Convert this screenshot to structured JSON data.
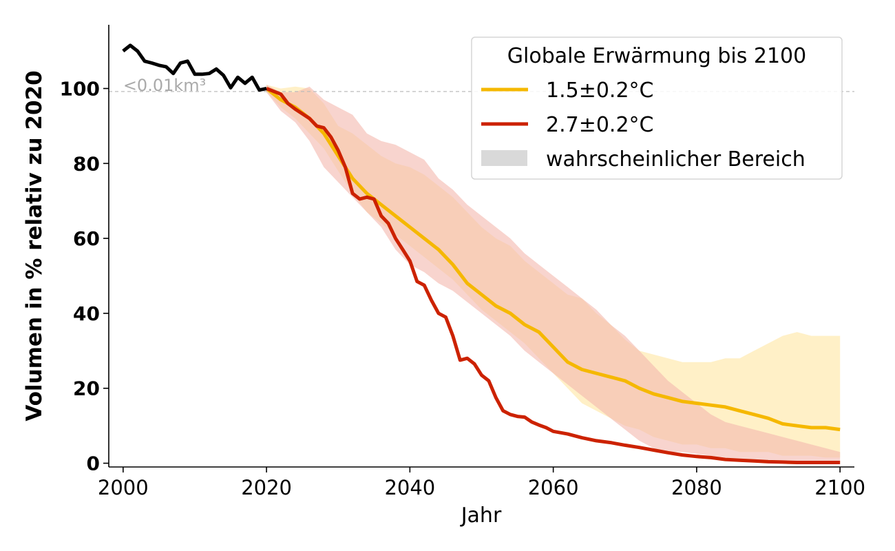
{
  "chart_data": {
    "type": "line",
    "xlabel": "Jahr",
    "ylabel": "Volumen in % relativ zu 2020",
    "xlim": [
      1998,
      2102
    ],
    "ylim": [
      -1,
      117
    ],
    "x_ticks": [
      2000,
      2020,
      2040,
      2060,
      2080,
      2100
    ],
    "y_ticks": [
      0,
      20,
      40,
      60,
      80,
      100
    ],
    "grid": false,
    "annotation": {
      "text": "<0.01km³",
      "reference_value": 99.2
    },
    "legend": {
      "title": "Globale Erwärmung bis 2100",
      "position": "top-right",
      "entries": [
        "1.5±0.2°C",
        "2.7±0.2°C",
        "wahrscheinlicher Bereich"
      ]
    },
    "colors": {
      "history": "#000000",
      "low": "#f5b800",
      "high": "#cc2200",
      "low_band": "#ffefc4",
      "high_band": "#f3b8ae",
      "range_patch": "#d9d9d9",
      "reference_line": "#bbbbbb"
    },
    "series": [
      {
        "key": "history",
        "x": [
          2000,
          2001,
          2002,
          2003,
          2004,
          2005,
          2006,
          2007,
          2008,
          2009,
          2010,
          2011,
          2012,
          2013,
          2014,
          2015,
          2016,
          2017,
          2018,
          2019,
          2020
        ],
        "values": [
          110,
          111.5,
          110,
          107.3,
          106.8,
          106.2,
          105.8,
          104,
          106.8,
          107.3,
          103.8,
          103.8,
          104,
          105.2,
          103.5,
          100.2,
          103,
          101.4,
          103,
          99.6,
          100
        ]
      },
      {
        "key": "low",
        "name": "1.5±0.2°C",
        "x": [
          2020,
          2022,
          2024,
          2026,
          2028,
          2030,
          2032,
          2034,
          2036,
          2038,
          2040,
          2042,
          2044,
          2046,
          2048,
          2050,
          2052,
          2054,
          2056,
          2058,
          2060,
          2062,
          2064,
          2066,
          2068,
          2070,
          2072,
          2074,
          2076,
          2078,
          2080,
          2082,
          2084,
          2086,
          2088,
          2090,
          2092,
          2094,
          2096,
          2098,
          2100
        ],
        "values": [
          100,
          97,
          95,
          92,
          88,
          82,
          76,
          72,
          69,
          66,
          63,
          60,
          57,
          53,
          48,
          45,
          42,
          40,
          37,
          35,
          31,
          27,
          25,
          24,
          23,
          22,
          20,
          18.5,
          17.5,
          16.5,
          16,
          15.5,
          15,
          14,
          13,
          12,
          10.5,
          10,
          9.5,
          9.5,
          9
        ],
        "range_lo": [
          99,
          95,
          92,
          88,
          84,
          78,
          72,
          67,
          64,
          61,
          58,
          55,
          52,
          49,
          45,
          41,
          38,
          35,
          32,
          28,
          24,
          20,
          16,
          14,
          12,
          10,
          9,
          7,
          6,
          5,
          5,
          4,
          4,
          3,
          3,
          3,
          2,
          2,
          2,
          1.5,
          1.5
        ],
        "range_hi": [
          101,
          100,
          100.5,
          100,
          96,
          90,
          88,
          85,
          82,
          80,
          79,
          77,
          74,
          71,
          67,
          63,
          60,
          58,
          54,
          51,
          48,
          45,
          44,
          40,
          37,
          33,
          30,
          29,
          28,
          27,
          27,
          27,
          28,
          28,
          30,
          32,
          34,
          35,
          34,
          34,
          34
        ]
      },
      {
        "key": "high",
        "name": "2.7±0.2°C",
        "x": [
          2020,
          2022,
          2023,
          2024,
          2026,
          2027,
          2028,
          2029,
          2030,
          2031,
          2032,
          2033,
          2034,
          2035,
          2036,
          2037,
          2038,
          2039,
          2040,
          2041,
          2042,
          2043,
          2044,
          2045,
          2046,
          2047,
          2048,
          2049,
          2050,
          2051,
          2052,
          2053,
          2054,
          2055,
          2056,
          2057,
          2058,
          2059,
          2060,
          2062,
          2064,
          2066,
          2068,
          2070,
          2072,
          2074,
          2076,
          2078,
          2080,
          2082,
          2084,
          2086,
          2088,
          2090,
          2092,
          2094,
          2096,
          2098,
          2100
        ],
        "values": [
          100,
          98.5,
          96,
          94.5,
          92,
          90,
          89.5,
          87,
          83.5,
          79,
          72,
          70.5,
          71,
          70.5,
          66,
          64,
          60,
          57,
          54,
          48.5,
          47.5,
          43.5,
          40,
          39,
          34,
          27.5,
          28,
          26.5,
          23.5,
          22,
          17.5,
          14,
          13,
          12.5,
          12.3,
          11,
          10.2,
          9.5,
          8.5,
          7.8,
          6.8,
          6,
          5.5,
          4.8,
          4.2,
          3.5,
          2.8,
          2.2,
          1.8,
          1.5,
          1,
          0.8,
          0.6,
          0.4,
          0.3,
          0.2,
          0.2,
          0.2,
          0.2
        ],
        "range_lo": [
          99,
          94,
          91,
          86,
          79,
          75,
          71,
          67,
          63,
          57,
          53,
          51,
          48,
          46,
          43,
          40,
          37,
          34,
          30,
          27,
          24,
          21,
          18,
          15,
          12,
          9,
          6,
          4,
          3,
          3,
          2.5,
          2,
          1.5,
          1,
          0.5,
          0.3,
          0.3,
          0.2,
          0.2,
          0.1,
          0.1,
          0.1,
          0.1,
          0.1,
          0.1
        ],
        "range_hi": [
          101,
          99,
          99,
          100.5,
          97,
          95,
          93,
          88,
          86,
          85,
          83,
          81,
          76,
          73,
          69,
          66,
          63,
          60,
          56,
          53,
          50,
          47,
          44,
          41,
          37,
          34,
          30,
          26,
          22,
          19,
          16,
          13,
          11,
          10,
          9,
          8,
          7,
          6,
          5,
          4,
          3,
          2.5,
          2.5,
          2.5,
          2.5
        ],
        "range_x": [
          2020,
          2022,
          2024,
          2026,
          2028,
          2030,
          2032,
          2034,
          2036,
          2038,
          2040,
          2042,
          2044,
          2046,
          2048,
          2050,
          2052,
          2054,
          2056,
          2058,
          2060,
          2062,
          2064,
          2066,
          2068,
          2070,
          2072,
          2074,
          2076,
          2078,
          2080,
          2082,
          2084,
          2086,
          2088,
          2090,
          2092,
          2094,
          2096,
          2098,
          2100,
          2100,
          2100,
          2100,
          2100
        ]
      }
    ]
  }
}
